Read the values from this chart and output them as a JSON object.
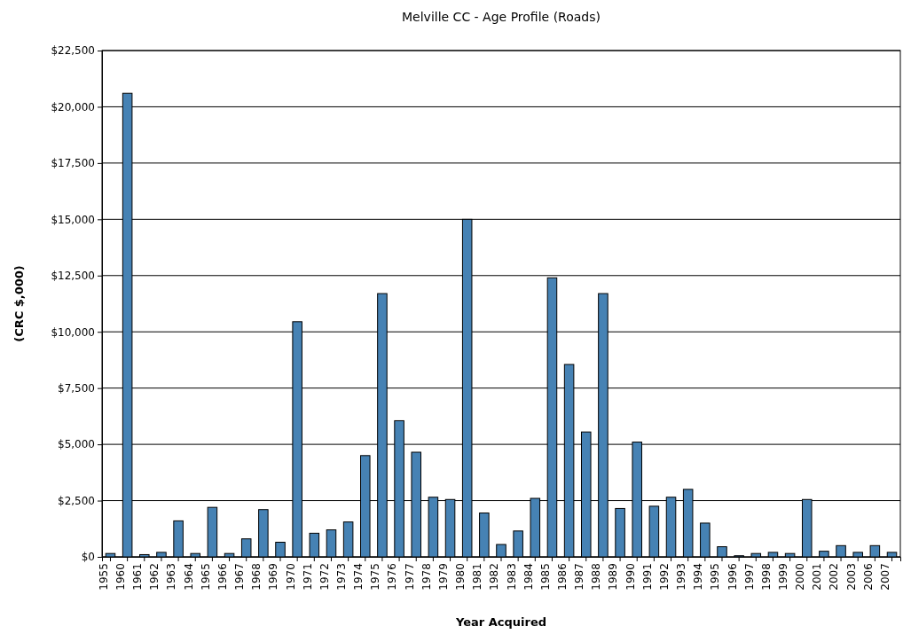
{
  "chart_data": {
    "type": "bar",
    "title": "Melville CC - Age Profile (Roads)",
    "xlabel": "Year Acquired",
    "ylabel": "(CRC $,000)",
    "categories": [
      "1955",
      "1960",
      "1961",
      "1962",
      "1963",
      "1964",
      "1965",
      "1966",
      "1967",
      "1968",
      "1969",
      "1970",
      "1971",
      "1972",
      "1973",
      "1974",
      "1975",
      "1976",
      "1977",
      "1978",
      "1979",
      "1980",
      "1981",
      "1982",
      "1983",
      "1984",
      "1985",
      "1986",
      "1987",
      "1988",
      "1989",
      "1990",
      "1991",
      "1992",
      "1993",
      "1994",
      "1995",
      "1996",
      "1997",
      "1998",
      "1999",
      "2000",
      "2001",
      "2002",
      "2003",
      "2006",
      "2007"
    ],
    "values": [
      150,
      20600,
      100,
      200,
      1600,
      150,
      2200,
      150,
      800,
      2100,
      650,
      10450,
      1050,
      1200,
      1550,
      4500,
      11700,
      6050,
      4650,
      2650,
      2550,
      15000,
      1950,
      550,
      1150,
      2600,
      12400,
      8550,
      5550,
      11700,
      2150,
      5100,
      2250,
      2650,
      3000,
      1500,
      450,
      50,
      150,
      200,
      150,
      2550,
      250,
      500,
      200,
      500,
      200
    ],
    "color": "#4682b4",
    "ylim": [
      0,
      22500
    ],
    "yticks": [
      {
        "value": 0,
        "label": "$0"
      },
      {
        "value": 2500,
        "label": "$2,500"
      },
      {
        "value": 5000,
        "label": "$5,000"
      },
      {
        "value": 7500,
        "label": "$7,500"
      },
      {
        "value": 10000,
        "label": "$10,000"
      },
      {
        "value": 12500,
        "label": "$12,500"
      },
      {
        "value": 15000,
        "label": "$15,000"
      },
      {
        "value": 17500,
        "label": "$17,500"
      },
      {
        "value": 20000,
        "label": "$20,000"
      },
      {
        "value": 22500,
        "label": "$22,500"
      }
    ],
    "grid": "y"
  }
}
